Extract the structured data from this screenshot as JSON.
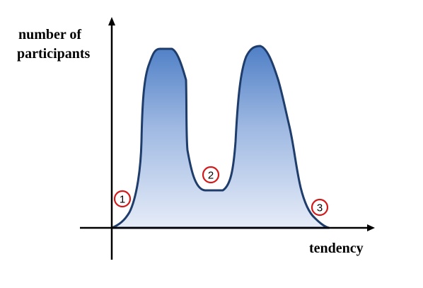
{
  "diagram": {
    "y_axis_label_line1": "number of",
    "y_axis_label_line2": "participants",
    "x_axis_label": "tendency",
    "markers": [
      {
        "label": "1"
      },
      {
        "label": "2"
      },
      {
        "label": "3"
      }
    ],
    "colors": {
      "curve_stroke": "#1f3d6b",
      "fill_top": "#4f7fc6",
      "fill_bottom": "#e6ecf8",
      "marker_ring": "#d11a1a",
      "axis": "#000000"
    }
  }
}
